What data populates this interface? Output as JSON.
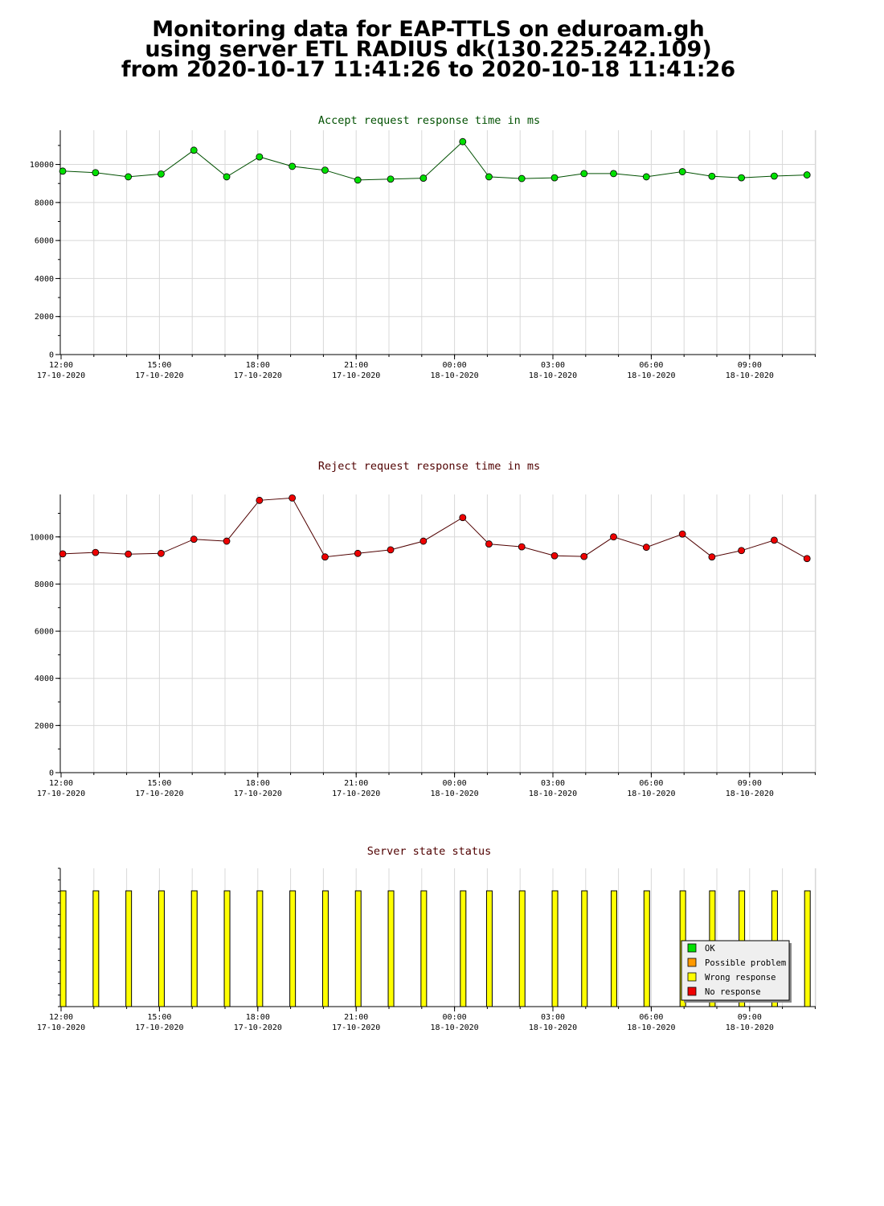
{
  "page": {
    "title_lines": [
      "Monitoring data for EAP-TTLS on eduroam.gh",
      "using server ETL RADIUS dk(130.225.242.109)",
      "from 2020-10-17 11:41:26 to 2020-10-18 11:41:26"
    ]
  },
  "colors": {
    "accept_title": "#005000",
    "reject_title": "#500000",
    "status_title": "#500000",
    "accept_marker": "#00e000",
    "reject_marker": "#ee0000",
    "accept_line": "#005000",
    "reject_line": "#500000",
    "status_bar": "#ffff00",
    "grid": "#d8d8d8"
  },
  "chart_data": [
    {
      "type": "line",
      "title": "Accept request response time in ms",
      "xlabel": "",
      "ylabel": "",
      "ylim": [
        0,
        11800
      ],
      "yticks": [
        0,
        2000,
        4000,
        6000,
        8000,
        10000
      ],
      "x_ticks": [
        {
          "time": "12:00",
          "date": "17-10-2020"
        },
        {
          "time": "15:00",
          "date": "17-10-2020"
        },
        {
          "time": "18:00",
          "date": "17-10-2020"
        },
        {
          "time": "21:00",
          "date": "17-10-2020"
        },
        {
          "time": "00:00",
          "date": "18-10-2020"
        },
        {
          "time": "03:00",
          "date": "18-10-2020"
        },
        {
          "time": "06:00",
          "date": "18-10-2020"
        },
        {
          "time": "09:00",
          "date": "18-10-2020"
        }
      ],
      "x_hours": [
        0.0,
        1.0,
        2.0,
        3.0,
        4.0,
        5.0,
        6.0,
        7.0,
        8.0,
        9.0,
        10.0,
        11.0,
        12.2,
        13.0,
        14.0,
        15.0,
        15.9,
        16.8,
        17.8,
        18.9,
        19.8,
        20.7,
        21.7,
        22.7
      ],
      "values": [
        9650,
        9570,
        9350,
        9500,
        10750,
        9350,
        10400,
        9900,
        9700,
        9180,
        9230,
        9280,
        11200,
        9350,
        9260,
        9300,
        9520,
        9520,
        9350,
        9620,
        9380,
        9300,
        9390,
        9450
      ],
      "grid": true,
      "legend": "none"
    },
    {
      "type": "line",
      "title": "Reject request response time in ms",
      "xlabel": "",
      "ylabel": "",
      "ylim": [
        0,
        11800
      ],
      "yticks": [
        0,
        2000,
        4000,
        6000,
        8000,
        10000
      ],
      "x_ticks": [
        {
          "time": "12:00",
          "date": "17-10-2020"
        },
        {
          "time": "15:00",
          "date": "17-10-2020"
        },
        {
          "time": "18:00",
          "date": "17-10-2020"
        },
        {
          "time": "21:00",
          "date": "17-10-2020"
        },
        {
          "time": "00:00",
          "date": "18-10-2020"
        },
        {
          "time": "03:00",
          "date": "18-10-2020"
        },
        {
          "time": "06:00",
          "date": "18-10-2020"
        },
        {
          "time": "09:00",
          "date": "18-10-2020"
        }
      ],
      "x_hours": [
        0.0,
        1.0,
        2.0,
        3.0,
        4.0,
        5.0,
        6.0,
        7.0,
        8.0,
        9.0,
        10.0,
        11.0,
        12.2,
        13.0,
        14.0,
        15.0,
        15.9,
        16.8,
        17.8,
        18.9,
        19.8,
        20.7,
        21.7,
        22.7
      ],
      "values": [
        9280,
        9340,
        9270,
        9300,
        9900,
        9820,
        11550,
        11650,
        9150,
        9300,
        9450,
        9820,
        10820,
        9700,
        9580,
        9200,
        9170,
        10000,
        9560,
        10120,
        9150,
        9420,
        9860,
        9080
      ],
      "grid": true,
      "legend": "none"
    },
    {
      "type": "bar",
      "title": "Server state status",
      "xlabel": "",
      "ylabel": "",
      "x_ticks": [
        {
          "time": "12:00",
          "date": "17-10-2020"
        },
        {
          "time": "15:00",
          "date": "17-10-2020"
        },
        {
          "time": "18:00",
          "date": "17-10-2020"
        },
        {
          "time": "21:00",
          "date": "17-10-2020"
        },
        {
          "time": "00:00",
          "date": "18-10-2020"
        },
        {
          "time": "03:00",
          "date": "18-10-2020"
        },
        {
          "time": "06:00",
          "date": "18-10-2020"
        },
        {
          "time": "09:00",
          "date": "18-10-2020"
        }
      ],
      "x_hours": [
        0.0,
        1.0,
        2.0,
        3.0,
        4.0,
        5.0,
        6.0,
        7.0,
        8.0,
        9.0,
        10.0,
        11.0,
        12.2,
        13.0,
        14.0,
        15.0,
        15.9,
        16.8,
        17.8,
        18.9,
        19.8,
        20.7,
        21.7,
        22.7
      ],
      "status": "Wrong response",
      "legend": {
        "placement": "bottom-right",
        "entries": [
          {
            "label": "OK",
            "color": "#00e000"
          },
          {
            "label": "Possible problem",
            "color": "#ff9900"
          },
          {
            "label": "Wrong response",
            "color": "#ffff00"
          },
          {
            "label": "No response",
            "color": "#ee0000"
          }
        ]
      }
    }
  ]
}
